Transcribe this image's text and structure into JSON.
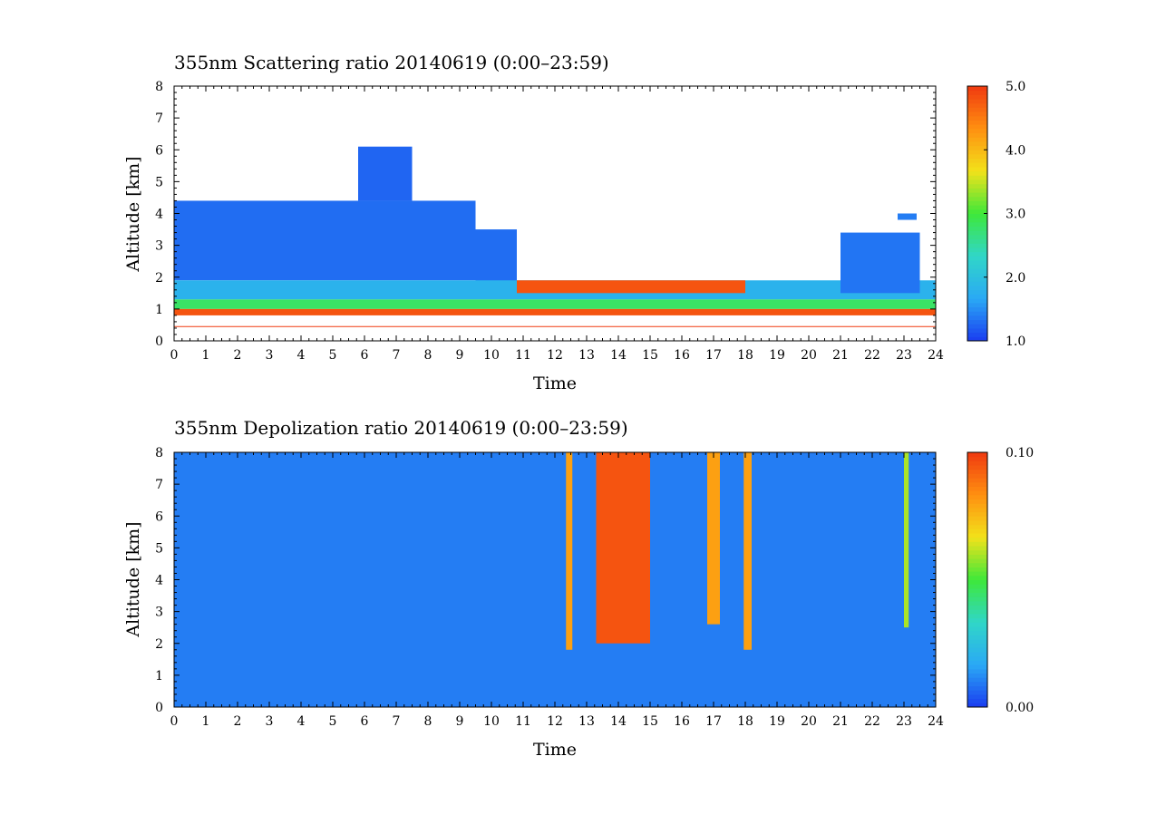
{
  "chart_data": [
    {
      "type": "heatmap",
      "title": "355nm Scattering ratio  20140619 (0:00–23:59)",
      "xlabel": "Time",
      "ylabel": "Altitude [km]",
      "xlim": [
        0,
        24
      ],
      "ylim": [
        0,
        8
      ],
      "x_ticks": [
        "0",
        "1",
        "2",
        "3",
        "4",
        "5",
        "6",
        "7",
        "8",
        "9",
        "10",
        "11",
        "12",
        "13",
        "14",
        "15",
        "16",
        "17",
        "18",
        "19",
        "20",
        "21",
        "22",
        "23",
        "24"
      ],
      "y_ticks": [
        "0",
        "1",
        "2",
        "3",
        "4",
        "5",
        "6",
        "7",
        "8"
      ],
      "colorbar": {
        "range": [
          1.0,
          5.0
        ],
        "ticks": [
          "1.0",
          "2.0",
          "3.0",
          "4.0",
          "5.0"
        ],
        "colors": [
          "#1a3cf0",
          "#2aa9f5",
          "#30d6c8",
          "#3ee83a",
          "#f2e21a",
          "#ff9010",
          "#f03a10"
        ]
      },
      "layers": [
        {
          "x": [
            0,
            9.5
          ],
          "altitude_km": [
            1.9,
            4.4
          ],
          "value": 1.3
        },
        {
          "x": [
            5.8,
            7.5
          ],
          "altitude_km": [
            4.4,
            6.1
          ],
          "value": 1.25
        },
        {
          "x": [
            9.5,
            10.8
          ],
          "altitude_km": [
            1.5,
            3.5
          ],
          "value": 1.3
        },
        {
          "x": [
            0,
            24
          ],
          "altitude_km": [
            1.3,
            1.9
          ],
          "value": 1.8
        },
        {
          "x": [
            0,
            24
          ],
          "altitude_km": [
            1.0,
            1.3
          ],
          "value": 2.8
        },
        {
          "x": [
            0,
            24
          ],
          "altitude_km": [
            0.8,
            1.0
          ],
          "value": 4.8
        },
        {
          "x": [
            21.0,
            23.5
          ],
          "altitude_km": [
            1.5,
            3.4
          ],
          "value": 1.35
        },
        {
          "x": [
            22.8,
            23.4
          ],
          "altitude_km": [
            3.8,
            4.0
          ],
          "value": 1.4
        },
        {
          "x": [
            10.8,
            18.0
          ],
          "altitude_km": [
            1.5,
            1.9
          ],
          "value": 4.8
        }
      ],
      "surface_line_km": 0.45
    },
    {
      "type": "heatmap",
      "title": "355nm Depolization ratio  20140619 (0:00–23:59)",
      "xlabel": "Time",
      "ylabel": "Altitude [km]",
      "xlim": [
        0,
        24
      ],
      "ylim": [
        0,
        8
      ],
      "x_ticks": [
        "0",
        "1",
        "2",
        "3",
        "4",
        "5",
        "6",
        "7",
        "8",
        "9",
        "10",
        "11",
        "12",
        "13",
        "14",
        "15",
        "16",
        "17",
        "18",
        "19",
        "20",
        "21",
        "22",
        "23",
        "24"
      ],
      "y_ticks": [
        "0",
        "1",
        "2",
        "3",
        "4",
        "5",
        "6",
        "7",
        "8"
      ],
      "colorbar": {
        "range": [
          0.0,
          0.1
        ],
        "ticks": [
          "0.00",
          "0.10"
        ],
        "colors": [
          "#1a3cf0",
          "#2aa9f5",
          "#30d6c8",
          "#3ee83a",
          "#f2e21a",
          "#ff9010",
          "#f03a10"
        ]
      },
      "background_value": 0.01,
      "columns": [
        {
          "x": [
            12.35,
            12.55
          ],
          "altitude_km": [
            1.8,
            8.0
          ],
          "value": 0.08
        },
        {
          "x": [
            13.3,
            15.0
          ],
          "altitude_km": [
            2.0,
            8.0
          ],
          "value": 0.095
        },
        {
          "x": [
            16.8,
            17.2
          ],
          "altitude_km": [
            2.6,
            8.0
          ],
          "value": 0.08
        },
        {
          "x": [
            17.95,
            18.2
          ],
          "altitude_km": [
            1.8,
            8.0
          ],
          "value": 0.08
        },
        {
          "x": [
            23.0,
            23.15
          ],
          "altitude_km": [
            2.5,
            8.0
          ],
          "value": 0.06
        }
      ]
    }
  ]
}
